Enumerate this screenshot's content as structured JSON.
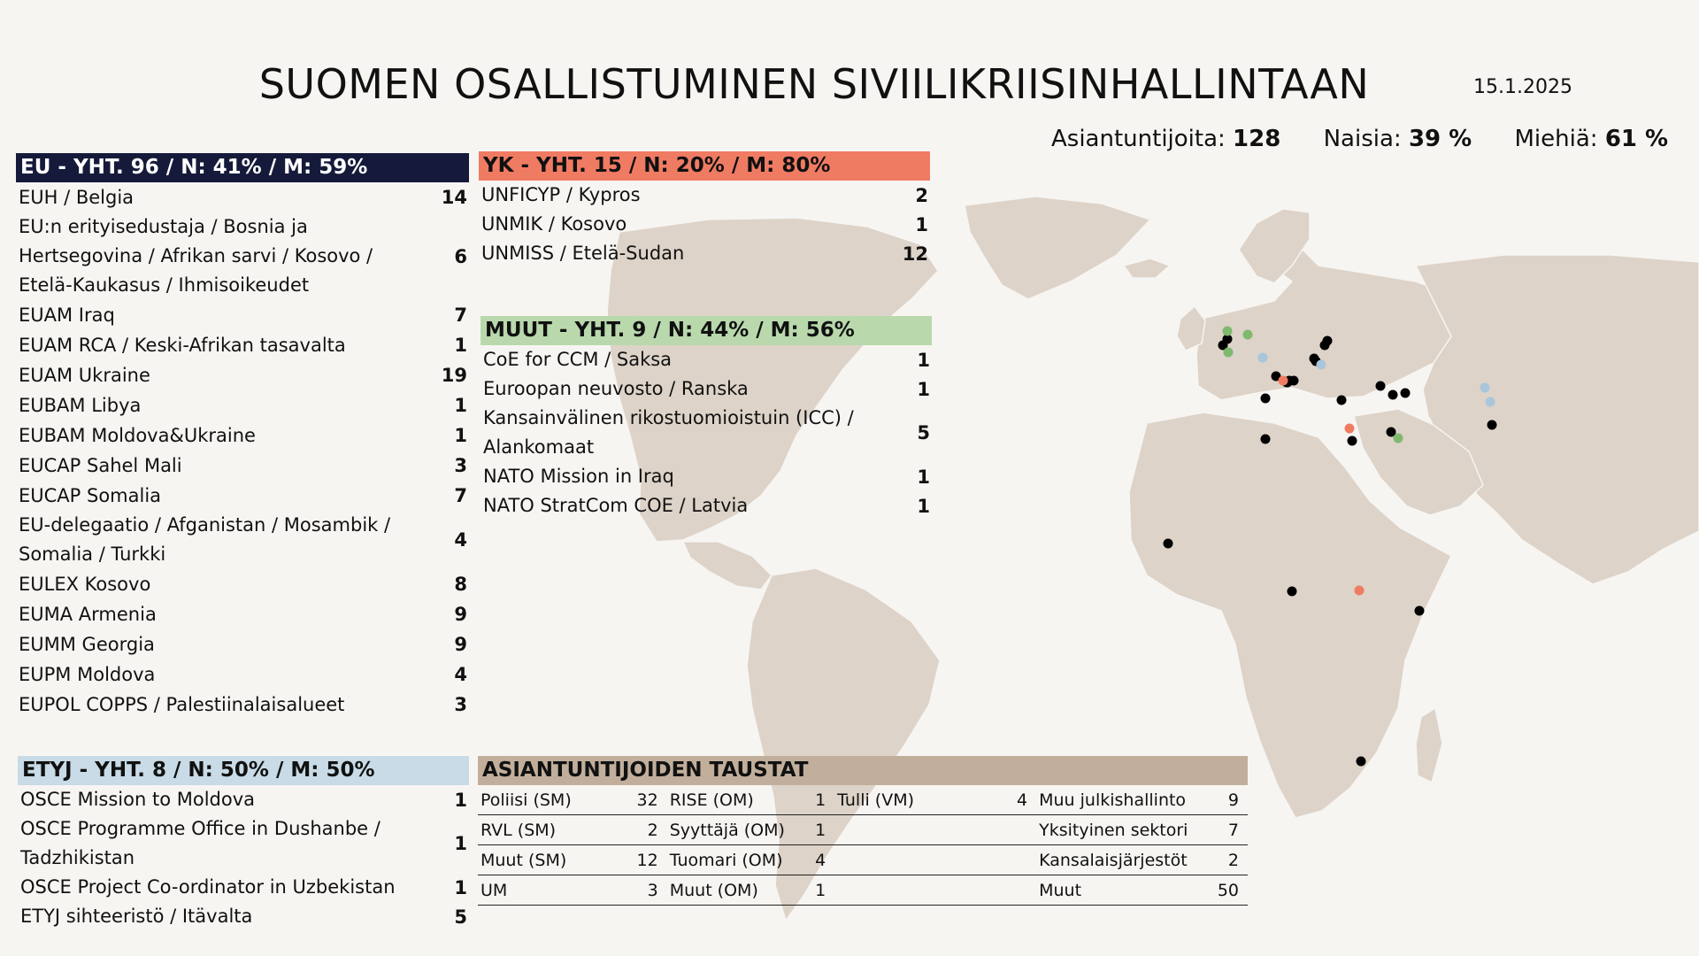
{
  "header": {
    "title": "SUOMEN OSALLISTUMINEN SIVIILIKRIISINHALLINTAAN",
    "date": "15.1.2025"
  },
  "stats": [
    {
      "label": "Asiantuntijoita:",
      "value": "128"
    },
    {
      "label": "Naisia:",
      "value": "39 %"
    },
    {
      "label": "Miehiä:",
      "value": "61 %"
    }
  ],
  "colors": {
    "eu": "#161a3a",
    "yk": "#f07b63",
    "muut": "#b9d9ad",
    "etyj": "#c8dbe6",
    "backgrounds": "#c1af9c",
    "land": "#ddd3c8"
  },
  "eu": {
    "header": "EU - YHT. 96 / N: 41% / M: 59%",
    "rows": [
      {
        "label": "EUH / Belgia",
        "value": "14"
      },
      {
        "label": "EU:n erityisedustaja / Bosnia ja Hertsegovina / Afrikan sarvi / Kosovo / Etelä-Kaukasus / Ihmisoikeudet",
        "value": "6"
      },
      {
        "label": "EUAM Iraq",
        "value": "7"
      },
      {
        "label": "EUAM RCA / Keski-Afrikan tasavalta",
        "value": "1"
      },
      {
        "label": "EUAM Ukraine",
        "value": "19"
      },
      {
        "label": "EUBAM Libya",
        "value": "1"
      },
      {
        "label": "EUBAM Moldova&Ukraine",
        "value": "1"
      },
      {
        "label": "EUCAP Sahel Mali",
        "value": "3"
      },
      {
        "label": "EUCAP Somalia",
        "value": "7"
      },
      {
        "label": "EU-delegaatio / Afganistan / Mosambik / Somalia / Turkki",
        "value": "4"
      },
      {
        "label": "EULEX Kosovo",
        "value": "8"
      },
      {
        "label": "EUMA Armenia",
        "value": "9"
      },
      {
        "label": "EUMM Georgia",
        "value": "9"
      },
      {
        "label": "EUPM Moldova",
        "value": "4"
      },
      {
        "label": "EUPOL COPPS / Palestiinalaisalueet",
        "value": "3"
      }
    ]
  },
  "yk": {
    "header": "YK - YHT. 15 / N: 20% / M: 80%",
    "rows": [
      {
        "label": "UNFICYP / Kypros",
        "value": "2"
      },
      {
        "label": "UNMIK / Kosovo",
        "value": "1"
      },
      {
        "label": "UNMISS / Etelä-Sudan",
        "value": "12"
      }
    ]
  },
  "muut": {
    "header": "MUUT - YHT. 9 / N: 44% / M: 56%",
    "rows": [
      {
        "label": "CoE for CCM / Saksa",
        "value": "1"
      },
      {
        "label": "Euroopan neuvosto / Ranska",
        "value": "1"
      },
      {
        "label": "Kansainvälinen rikostuomioistuin (ICC) / Alankomaat",
        "value": "5"
      },
      {
        "label": "NATO Mission in Iraq",
        "value": "1"
      },
      {
        "label": "NATO StratCom COE / Latvia",
        "value": "1"
      }
    ]
  },
  "etyj": {
    "header": "ETYJ - YHT. 8 / N: 50% / M: 50%",
    "rows": [
      {
        "label": "OSCE Mission to Moldova",
        "value": "1"
      },
      {
        "label": "OSCE Programme Office in Dushanbe / Tadzhikistan",
        "value": "1"
      },
      {
        "label": "OSCE Project Co-ordinator in Uzbekistan",
        "value": "1"
      },
      {
        "label": "ETYJ sihteeristö / Itävalta",
        "value": "5"
      }
    ]
  },
  "backgrounds": {
    "header": "ASIANTUNTIJOIDEN TAUSTAT",
    "rows": [
      [
        {
          "label": "Poliisi (SM)",
          "value": "32"
        },
        {
          "label": "RISE (OM)",
          "value": "1"
        },
        {
          "label": "Tulli (VM)",
          "value": "4"
        },
        {
          "label": "Muu julkishallinto",
          "value": "9"
        }
      ],
      [
        {
          "label": "RVL (SM)",
          "value": "2"
        },
        {
          "label": "Syyttäjä (OM)",
          "value": "1"
        },
        {
          "label": "",
          "value": ""
        },
        {
          "label": "Yksityinen sektori",
          "value": "7"
        }
      ],
      [
        {
          "label": "Muut (SM)",
          "value": "12"
        },
        {
          "label": "Tuomari (OM)",
          "value": "4"
        },
        {
          "label": "",
          "value": ""
        },
        {
          "label": "Kansalaisjärjestöt",
          "value": "2"
        }
      ],
      [
        {
          "label": "UM",
          "value": "3"
        },
        {
          "label": "Muut (OM)",
          "value": "1"
        },
        {
          "label": "",
          "value": ""
        },
        {
          "label": "Muut",
          "value": "50"
        }
      ]
    ]
  },
  "map_markers": [
    {
      "org": "eu",
      "color": "#000000",
      "count": 24
    },
    {
      "org": "yk",
      "color": "#f07b63",
      "count": 3
    },
    {
      "org": "muut",
      "color": "#7fb86e",
      "count": 4
    },
    {
      "org": "etyj",
      "color": "#a9c6da",
      "count": 4
    }
  ]
}
